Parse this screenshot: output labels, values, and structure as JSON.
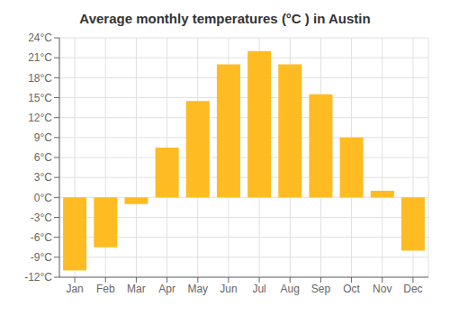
{
  "chart_data": {
    "type": "bar",
    "title": "Average monthly temperatures (°C ) in Austin",
    "categories": [
      "Jan",
      "Feb",
      "Mar",
      "Apr",
      "May",
      "Jun",
      "Jul",
      "Aug",
      "Sep",
      "Oct",
      "Nov",
      "Dec"
    ],
    "values": [
      -11,
      -7.5,
      -1,
      7.5,
      14.5,
      20,
      22,
      20,
      15.5,
      9,
      1,
      -8
    ],
    "color": "#FFBB22",
    "ylim": [
      -12,
      24
    ],
    "yticks": [
      {
        "value": -12,
        "label": "-12°C"
      },
      {
        "value": -9,
        "label": "-9°C"
      },
      {
        "value": -6,
        "label": "-6°C"
      },
      {
        "value": -3,
        "label": "-3°C"
      },
      {
        "value": 0,
        "label": "0°C"
      },
      {
        "value": 3,
        "label": "3°C"
      },
      {
        "value": 6,
        "label": "6°C"
      },
      {
        "value": 9,
        "label": "9°C"
      },
      {
        "value": 12,
        "label": "12°C"
      },
      {
        "value": 15,
        "label": "15°C"
      },
      {
        "value": 18,
        "label": "18°C"
      },
      {
        "value": 21,
        "label": "21°C"
      },
      {
        "value": 24,
        "label": "24°C"
      }
    ],
    "grid": true
  }
}
